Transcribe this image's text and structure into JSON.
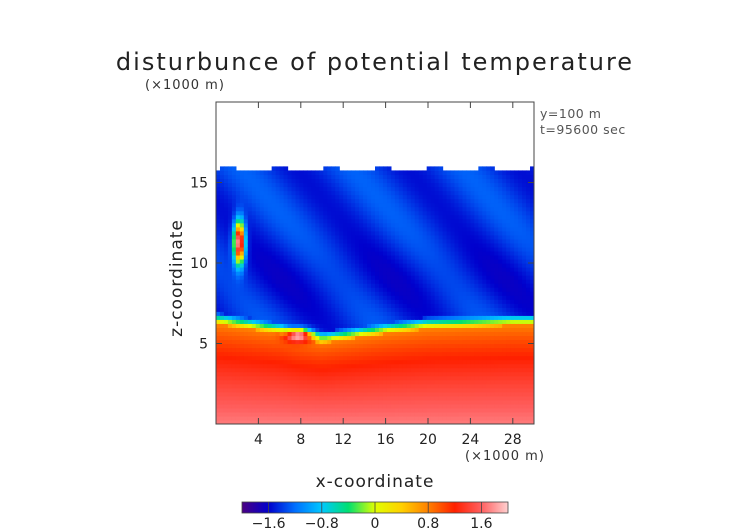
{
  "chart_data": {
    "type": "heatmap",
    "title": "disturbunce of potential temperature",
    "xlabel": "x-coordinate",
    "ylabel": "z-coordinate",
    "x_unit": "(×1000 m)",
    "y_unit": "(×1000 m)",
    "xlim": [
      0,
      30
    ],
    "ylim": [
      0,
      20
    ],
    "x_ticks": [
      4,
      8,
      12,
      16,
      20,
      24,
      28
    ],
    "x_tick_labels": [
      "4",
      "8",
      "12",
      "16",
      "20",
      "24",
      "28"
    ],
    "y_ticks": [
      5,
      10,
      15
    ],
    "y_tick_labels": [
      "5",
      "10",
      "15"
    ],
    "annotations": [
      "y=100 m",
      "t=95600 sec"
    ],
    "colorbar": {
      "range": [
        -2.0,
        2.0
      ],
      "tick_values": [
        -1.6,
        -0.8,
        0,
        0.8,
        1.6
      ],
      "tick_labels": [
        "−1.6",
        "−0.8",
        "0",
        "0.8",
        "1.6"
      ],
      "colors": [
        "#4b0082",
        "#0000cd",
        "#0070ff",
        "#00c8ff",
        "#00e070",
        "#e0ff00",
        "#ffd000",
        "#ff8000",
        "#ff2000",
        "#ff6060",
        "#ffd0d0"
      ]
    },
    "field_description": {
      "top_of_domain_z": 15.8,
      "cold_layer_value": -1.4,
      "warm_layer_base_value": 1.7,
      "interface_z": [
        {
          "x": 0.0,
          "z": 6.6
        },
        {
          "x": 2.0,
          "z": 6.4
        },
        {
          "x": 4.0,
          "z": 6.2
        },
        {
          "x": 6.0,
          "z": 6.0
        },
        {
          "x": 8.0,
          "z": 5.6
        },
        {
          "x": 10.0,
          "z": 5.4
        },
        {
          "x": 12.0,
          "z": 5.6
        },
        {
          "x": 16.0,
          "z": 6.0
        },
        {
          "x": 20.0,
          "z": 6.3
        },
        {
          "x": 24.0,
          "z": 6.4
        },
        {
          "x": 28.0,
          "z": 6.5
        },
        {
          "x": 30.0,
          "z": 6.5
        }
      ],
      "features": [
        {
          "name": "warm-bubble-upper",
          "x": 2.2,
          "z": 11.3,
          "value": 2.0
        },
        {
          "name": "warm-bubble-lower",
          "x": 7.8,
          "z": 5.5,
          "value": 2.0
        }
      ]
    }
  }
}
